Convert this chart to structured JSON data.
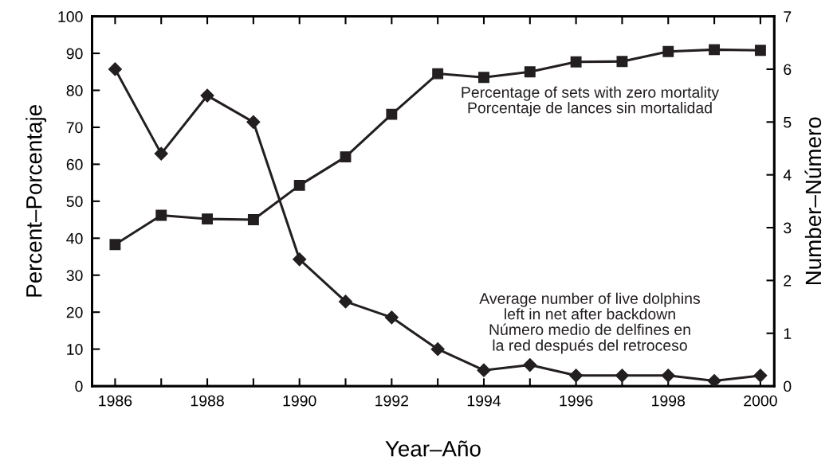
{
  "chart_data": {
    "type": "line",
    "xlabel": "Year–Año",
    "ylabel": "Percent–Porcentaje",
    "y2label": "Number–Número",
    "x": [
      1986,
      1987,
      1988,
      1989,
      1990,
      1991,
      1992,
      1993,
      1994,
      1995,
      1996,
      1997,
      1998,
      1999,
      2000
    ],
    "series": [
      {
        "name": "Percentage of sets with zero mortality\nPorcentaje de lances sin mortalidad",
        "color": "#231f20",
        "marker": "square",
        "values": [
          38.3,
          46.2,
          45.2,
          45,
          54.3,
          62,
          73.5,
          84.5,
          83.5,
          85,
          87.7,
          87.8,
          90.5,
          91,
          90.8
        ]
      },
      {
        "name": "Average number of live dolphins\nleft in net after backdown\nNúmero medio de delfines en\nla red después del retroceso",
        "color": "#231f20",
        "marker": "diamond",
        "axis": "y2",
        "values": [
          6.0,
          4.4,
          5.5,
          5.0,
          2.4,
          1.6,
          1.3,
          0.7,
          0.3,
          0.4,
          0.2,
          0.2,
          0.2,
          0.1,
          0.2
        ]
      }
    ],
    "xlim": [
      1985.5,
      2000.3
    ],
    "xticks": [
      {
        "value": 1986,
        "label": "1986"
      },
      {
        "value": 1987,
        "label": null
      },
      {
        "value": 1988,
        "label": "1988"
      },
      {
        "value": 1989,
        "label": null
      },
      {
        "value": 1990,
        "label": "1990"
      },
      {
        "value": 1991,
        "label": null
      },
      {
        "value": 1992,
        "label": "1992"
      },
      {
        "value": 1993,
        "label": null
      },
      {
        "value": 1994,
        "label": "1994"
      },
      {
        "value": 1995,
        "label": null
      },
      {
        "value": 1996,
        "label": "1996"
      },
      {
        "value": 1997,
        "label": null
      },
      {
        "value": 1998,
        "label": "1998"
      },
      {
        "value": 1999,
        "label": null
      },
      {
        "value": 2000,
        "label": "2000"
      }
    ],
    "ylim": [
      0,
      100
    ],
    "yticks": [
      0,
      10,
      20,
      30,
      40,
      50,
      60,
      70,
      80,
      90,
      100
    ],
    "y2lim": [
      0,
      7
    ],
    "y2ticks": [
      0,
      1,
      2,
      3,
      4,
      5,
      6,
      7
    ],
    "grid": false,
    "legend": false,
    "line_style": "solid"
  }
}
